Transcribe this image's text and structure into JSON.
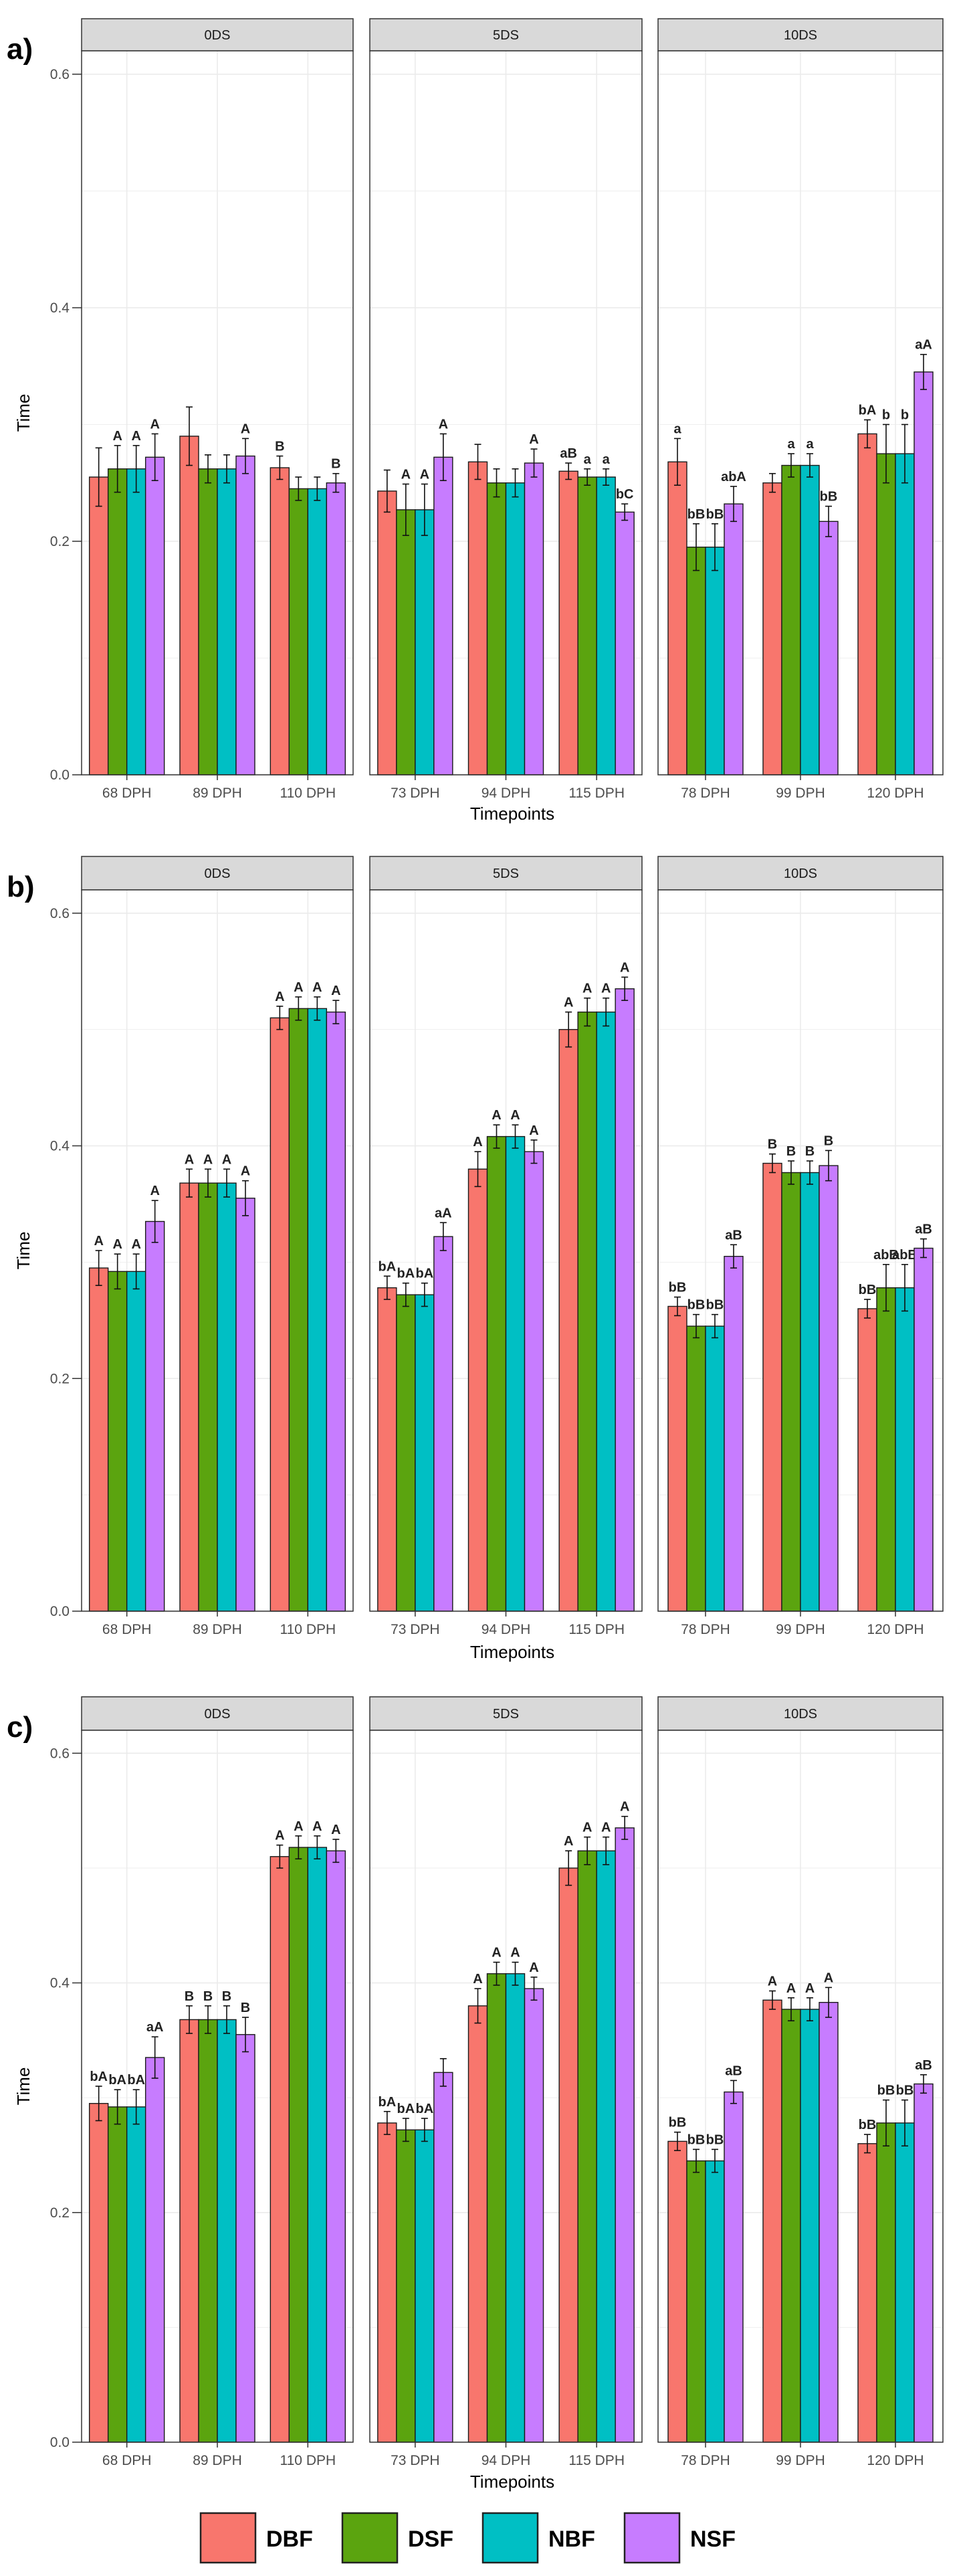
{
  "chart_data": [
    {
      "type": "bar",
      "panel": "a)",
      "ylabel": "Time",
      "xlabel": "Timepoints",
      "ylim": [
        0,
        0.62
      ],
      "yticks": [
        "0.0",
        "0.2",
        "0.4",
        "0.6"
      ],
      "facets": [
        {
          "strip": "0DS",
          "categories": [
            "68 DPH",
            "89 DPH",
            "110 DPH"
          ],
          "series": [
            {
              "name": "DBF",
              "values": [
                0.255,
                0.29,
                0.263
              ],
              "errors": [
                0.025,
                0.025,
                0.01
              ],
              "labels": [
                "",
                "",
                "B"
              ]
            },
            {
              "name": "DSF",
              "values": [
                0.262,
                0.262,
                0.245
              ],
              "errors": [
                0.02,
                0.012,
                0.01
              ],
              "labels": [
                "A",
                "",
                ""
              ]
            },
            {
              "name": "NBF",
              "values": [
                0.262,
                0.262,
                0.245
              ],
              "errors": [
                0.02,
                0.012,
                0.01
              ],
              "labels": [
                "A",
                "",
                ""
              ]
            },
            {
              "name": "NSF",
              "values": [
                0.272,
                0.273,
                0.25
              ],
              "errors": [
                0.02,
                0.015,
                0.008
              ],
              "labels": [
                "A",
                "A",
                "B"
              ]
            }
          ]
        },
        {
          "strip": "5DS",
          "categories": [
            "73 DPH",
            "94 DPH",
            "115 DPH"
          ],
          "series": [
            {
              "name": "DBF",
              "values": [
                0.243,
                0.268,
                0.26
              ],
              "errors": [
                0.018,
                0.015,
                0.007
              ],
              "labels": [
                "",
                "",
                "aB"
              ]
            },
            {
              "name": "DSF",
              "values": [
                0.227,
                0.25,
                0.255
              ],
              "errors": [
                0.022,
                0.012,
                0.007
              ],
              "labels": [
                "A",
                "",
                "a"
              ]
            },
            {
              "name": "NBF",
              "values": [
                0.227,
                0.25,
                0.255
              ],
              "errors": [
                0.022,
                0.012,
                0.007
              ],
              "labels": [
                "A",
                "",
                "a"
              ]
            },
            {
              "name": "NSF",
              "values": [
                0.272,
                0.267,
                0.225
              ],
              "errors": [
                0.02,
                0.012,
                0.007
              ],
              "labels": [
                "A",
                "A",
                "bC"
              ]
            }
          ]
        },
        {
          "strip": "10DS",
          "categories": [
            "78 DPH",
            "99 DPH",
            "120 DPH"
          ],
          "series": [
            {
              "name": "DBF",
              "values": [
                0.268,
                0.25,
                0.292
              ],
              "errors": [
                0.02,
                0.008,
                0.012
              ],
              "labels": [
                "a",
                "",
                "bA"
              ]
            },
            {
              "name": "DSF",
              "values": [
                0.195,
                0.265,
                0.275
              ],
              "errors": [
                0.02,
                0.01,
                0.025
              ],
              "labels": [
                "bB",
                "a",
                "b"
              ]
            },
            {
              "name": "NBF",
              "values": [
                0.195,
                0.265,
                0.275
              ],
              "errors": [
                0.02,
                0.01,
                0.025
              ],
              "labels": [
                "bB",
                "a",
                "b"
              ]
            },
            {
              "name": "NSF",
              "values": [
                0.232,
                0.217,
                0.345
              ],
              "errors": [
                0.015,
                0.013,
                0.015
              ],
              "labels": [
                "abA",
                "bB",
                "aA"
              ]
            }
          ]
        }
      ]
    },
    {
      "type": "bar",
      "panel": "b)",
      "ylabel": "Time",
      "xlabel": "Timepoints",
      "ylim": [
        0,
        0.62
      ],
      "yticks": [
        "0.0",
        "0.2",
        "0.4",
        "0.6"
      ],
      "facets": [
        {
          "strip": "0DS",
          "categories": [
            "68 DPH",
            "89 DPH",
            "110 DPH"
          ],
          "series": [
            {
              "name": "DBF",
              "values": [
                0.295,
                0.368,
                0.51
              ],
              "errors": [
                0.015,
                0.012,
                0.01
              ],
              "labels": [
                "A",
                "A",
                "A"
              ]
            },
            {
              "name": "DSF",
              "values": [
                0.292,
                0.368,
                0.518
              ],
              "errors": [
                0.015,
                0.012,
                0.01
              ],
              "labels": [
                "A",
                "A",
                "A"
              ]
            },
            {
              "name": "NBF",
              "values": [
                0.292,
                0.368,
                0.518
              ],
              "errors": [
                0.015,
                0.012,
                0.01
              ],
              "labels": [
                "A",
                "A",
                "A"
              ]
            },
            {
              "name": "NSF",
              "values": [
                0.335,
                0.355,
                0.515
              ],
              "errors": [
                0.018,
                0.015,
                0.01
              ],
              "labels": [
                "A",
                "A",
                "A"
              ]
            }
          ]
        },
        {
          "strip": "5DS",
          "categories": [
            "73 DPH",
            "94 DPH",
            "115 DPH"
          ],
          "series": [
            {
              "name": "DBF",
              "values": [
                0.278,
                0.38,
                0.5
              ],
              "errors": [
                0.01,
                0.015,
                0.015
              ],
              "labels": [
                "bA",
                "A",
                "A"
              ]
            },
            {
              "name": "DSF",
              "values": [
                0.272,
                0.408,
                0.515
              ],
              "errors": [
                0.01,
                0.01,
                0.012
              ],
              "labels": [
                "bA",
                "A",
                "A"
              ]
            },
            {
              "name": "NBF",
              "values": [
                0.272,
                0.408,
                0.515
              ],
              "errors": [
                0.01,
                0.01,
                0.012
              ],
              "labels": [
                "bA",
                "A",
                "A"
              ]
            },
            {
              "name": "NSF",
              "values": [
                0.322,
                0.395,
                0.535
              ],
              "errors": [
                0.012,
                0.01,
                0.01
              ],
              "labels": [
                "aA",
                "A",
                "A"
              ]
            }
          ]
        },
        {
          "strip": "10DS",
          "categories": [
            "78 DPH",
            "99 DPH",
            "120 DPH"
          ],
          "series": [
            {
              "name": "DBF",
              "values": [
                0.262,
                0.385,
                0.26
              ],
              "errors": [
                0.008,
                0.008,
                0.008
              ],
              "labels": [
                "bB",
                "B",
                "bB"
              ]
            },
            {
              "name": "DSF",
              "values": [
                0.245,
                0.377,
                0.278
              ],
              "errors": [
                0.01,
                0.01,
                0.02
              ],
              "labels": [
                "bB",
                "B",
                "abB"
              ]
            },
            {
              "name": "NBF",
              "values": [
                0.245,
                0.377,
                0.278
              ],
              "errors": [
                0.01,
                0.01,
                0.02
              ],
              "labels": [
                "bB",
                "B",
                "abB"
              ]
            },
            {
              "name": "NSF",
              "values": [
                0.305,
                0.383,
                0.312
              ],
              "errors": [
                0.01,
                0.013,
                0.008
              ],
              "labels": [
                "aB",
                "B",
                "aB"
              ]
            }
          ]
        }
      ]
    },
    {
      "type": "bar",
      "panel": "c)",
      "ylabel": "Time",
      "xlabel": "Timepoints",
      "ylim": [
        0,
        0.62
      ],
      "yticks": [
        "0.0",
        "0.2",
        "0.4",
        "0.6"
      ],
      "facets": [
        {
          "strip": "0DS",
          "categories": [
            "68 DPH",
            "89 DPH",
            "110 DPH"
          ],
          "series": [
            {
              "name": "DBF",
              "values": [
                0.295,
                0.368,
                0.51
              ],
              "errors": [
                0.015,
                0.012,
                0.01
              ],
              "labels": [
                "bA",
                "B",
                "A"
              ]
            },
            {
              "name": "DSF",
              "values": [
                0.292,
                0.368,
                0.518
              ],
              "errors": [
                0.015,
                0.012,
                0.01
              ],
              "labels": [
                "bA",
                "B",
                "A"
              ]
            },
            {
              "name": "NBF",
              "values": [
                0.292,
                0.368,
                0.518
              ],
              "errors": [
                0.015,
                0.012,
                0.01
              ],
              "labels": [
                "bA",
                "B",
                "A"
              ]
            },
            {
              "name": "NSF",
              "values": [
                0.335,
                0.355,
                0.515
              ],
              "errors": [
                0.018,
                0.015,
                0.01
              ],
              "labels": [
                "aA",
                "B",
                "A"
              ]
            }
          ]
        },
        {
          "strip": "5DS",
          "categories": [
            "73 DPH",
            "94 DPH",
            "115 DPH"
          ],
          "series": [
            {
              "name": "DBF",
              "values": [
                0.278,
                0.38,
                0.5
              ],
              "errors": [
                0.01,
                0.015,
                0.015
              ],
              "labels": [
                "bA",
                "A",
                "A"
              ]
            },
            {
              "name": "DSF",
              "values": [
                0.272,
                0.408,
                0.515
              ],
              "errors": [
                0.01,
                0.01,
                0.012
              ],
              "labels": [
                "bA",
                "A",
                "A"
              ]
            },
            {
              "name": "NBF",
              "values": [
                0.272,
                0.408,
                0.515
              ],
              "errors": [
                0.01,
                0.01,
                0.012
              ],
              "labels": [
                "bA",
                "A",
                "A"
              ]
            },
            {
              "name": "NSF",
              "values": [
                0.322,
                0.395,
                0.535
              ],
              "errors": [
                0.012,
                0.01,
                0.01
              ],
              "labels": [
                "",
                "A",
                "A"
              ]
            }
          ]
        },
        {
          "strip": "10DS",
          "categories": [
            "78 DPH",
            "99 DPH",
            "120 DPH"
          ],
          "series": [
            {
              "name": "DBF",
              "values": [
                0.262,
                0.385,
                0.26
              ],
              "errors": [
                0.008,
                0.008,
                0.008
              ],
              "labels": [
                "bB",
                "A",
                "bB"
              ]
            },
            {
              "name": "DSF",
              "values": [
                0.245,
                0.377,
                0.278
              ],
              "errors": [
                0.01,
                0.01,
                0.02
              ],
              "labels": [
                "bB",
                "A",
                "bB"
              ]
            },
            {
              "name": "NBF",
              "values": [
                0.245,
                0.377,
                0.278
              ],
              "errors": [
                0.01,
                0.01,
                0.02
              ],
              "labels": [
                "bB",
                "A",
                "bB"
              ]
            },
            {
              "name": "NSF",
              "values": [
                0.305,
                0.383,
                0.312
              ],
              "errors": [
                0.01,
                0.013,
                0.008
              ],
              "labels": [
                "aB",
                "A",
                "aB"
              ]
            }
          ]
        }
      ]
    }
  ],
  "legend": [
    {
      "name": "DBF",
      "color": "#F8766D"
    },
    {
      "name": "DSF",
      "color": "#5BA40F"
    },
    {
      "name": "NBF",
      "color": "#00BFC4"
    },
    {
      "name": "NSF",
      "color": "#C77CFF"
    }
  ]
}
